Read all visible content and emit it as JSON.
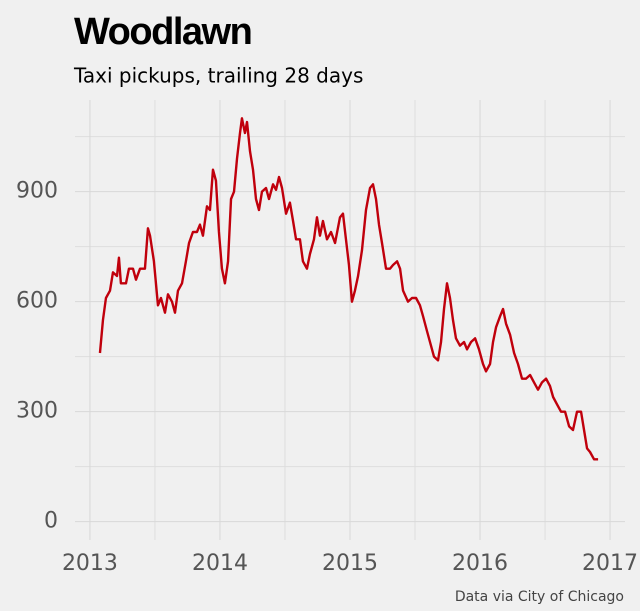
{
  "chart_data": {
    "type": "line",
    "title": "Woodlawn",
    "subtitle": "Taxi pickups, trailing 28 days",
    "source": "Data via City of Chicago",
    "x": [
      2013.077,
      2013.1,
      2013.123,
      2013.154,
      2013.177,
      2013.208,
      2013.223,
      2013.238,
      2013.277,
      2013.3,
      2013.331,
      2013.354,
      2013.385,
      2013.423,
      2013.446,
      2013.462,
      2013.492,
      2013.523,
      2013.546,
      2013.577,
      2013.6,
      2013.631,
      2013.654,
      2013.677,
      2013.708,
      2013.738,
      2013.762,
      2013.792,
      2013.823,
      2013.846,
      2013.869,
      2013.9,
      2013.923,
      2013.946,
      2013.969,
      2013.992,
      2014.015,
      2014.038,
      2014.062,
      2014.085,
      2014.108,
      2014.131,
      2014.154,
      2014.169,
      2014.192,
      2014.208,
      2014.231,
      2014.254,
      2014.277,
      2014.3,
      2014.323,
      2014.354,
      2014.377,
      2014.408,
      2014.431,
      2014.454,
      2014.477,
      2014.508,
      2014.538,
      2014.562,
      2014.585,
      2014.615,
      2014.638,
      2014.669,
      2014.692,
      2014.723,
      2014.746,
      2014.769,
      2014.792,
      2014.823,
      2014.854,
      2014.885,
      2014.923,
      2014.946,
      2014.969,
      2014.992,
      2015.015,
      2015.038,
      2015.062,
      2015.092,
      2015.123,
      2015.154,
      2015.177,
      2015.2,
      2015.223,
      2015.246,
      2015.277,
      2015.308,
      2015.331,
      2015.362,
      2015.385,
      2015.408,
      2015.446,
      2015.477,
      2015.508,
      2015.538,
      2015.562,
      2015.592,
      2015.623,
      2015.646,
      2015.677,
      2015.7,
      2015.723,
      2015.746,
      2015.769,
      2015.792,
      2015.815,
      2015.846,
      2015.877,
      2015.9,
      2015.931,
      2015.962,
      2015.992,
      2016.023,
      2016.046,
      2016.077,
      2016.1,
      2016.123,
      2016.154,
      2016.177,
      2016.2,
      2016.231,
      2016.262,
      2016.292,
      2016.323,
      2016.354,
      2016.385,
      2016.415,
      2016.446,
      2016.477,
      2016.508,
      2016.538,
      2016.562,
      2016.592,
      2016.623,
      2016.654,
      2016.685,
      2016.715,
      2016.746,
      2016.777,
      2016.8,
      2016.823,
      2016.846,
      2016.877,
      2016.908
    ],
    "series": [
      {
        "color": "#c0000c",
        "values": [
          460,
          550,
          610,
          630,
          680,
          670,
          720,
          650,
          650,
          690,
          690,
          660,
          690,
          690,
          800,
          780,
          710,
          590,
          610,
          570,
          620,
          600,
          570,
          630,
          650,
          710,
          760,
          790,
          790,
          810,
          780,
          860,
          850,
          960,
          930,
          790,
          690,
          650,
          710,
          880,
          900,
          990,
          1060,
          1100,
          1060,
          1090,
          1010,
          960,
          880,
          850,
          900,
          910,
          880,
          920,
          905,
          940,
          910,
          840,
          870,
          820,
          770,
          770,
          710,
          690,
          730,
          770,
          830,
          780,
          820,
          770,
          790,
          760,
          830,
          840,
          770,
          700,
          600,
          630,
          670,
          740,
          850,
          910,
          920,
          880,
          810,
          760,
          690,
          690,
          700,
          710,
          690,
          630,
          600,
          610,
          610,
          590,
          560,
          520,
          480,
          450,
          440,
          490,
          580,
          650,
          610,
          550,
          500,
          480,
          490,
          470,
          490,
          500,
          470,
          430,
          410,
          430,
          490,
          530,
          560,
          580,
          540,
          510,
          460,
          430,
          390,
          390,
          400,
          380,
          360,
          380,
          390,
          370,
          340,
          320,
          300,
          300,
          260,
          250,
          300,
          300,
          250,
          200,
          190,
          170,
          170
        ]
      }
    ],
    "xlim": [
      2012.885,
      2017.115
    ],
    "ylim": [
      -50,
      1150
    ],
    "xticks": [
      2013,
      2014,
      2015,
      2016,
      2017
    ],
    "yticks": [
      0,
      300,
      600,
      900
    ],
    "x_minor_ticks": [
      2013.5,
      2014.5,
      2015.5,
      2016.5
    ],
    "y_minor_ticks": [
      150,
      450,
      750,
      1050
    ],
    "grid": true
  }
}
